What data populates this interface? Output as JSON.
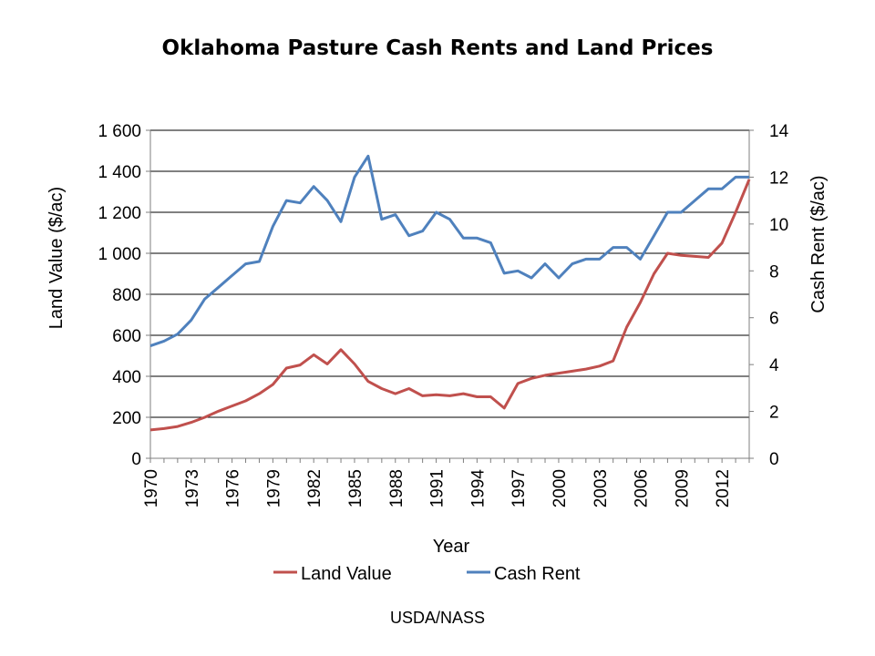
{
  "chart_data": {
    "type": "line",
    "title": "Oklahoma Pasture Cash Rents and Land Prices",
    "xlabel": "Year",
    "ylabel_left": "Land Value ($/ac)",
    "ylabel_right": "Cash Rent ($/ac)",
    "x": [
      1970,
      1971,
      1972,
      1973,
      1974,
      1975,
      1976,
      1977,
      1978,
      1979,
      1980,
      1981,
      1982,
      1983,
      1984,
      1985,
      1986,
      1987,
      1988,
      1989,
      1990,
      1991,
      1992,
      1993,
      1994,
      1995,
      1996,
      1997,
      1998,
      1999,
      2000,
      2001,
      2002,
      2003,
      2004,
      2005,
      2006,
      2007,
      2008,
      2009,
      2010,
      2011,
      2012,
      2013,
      2014
    ],
    "x_tick_labels": [
      "1970",
      "1973",
      "1976",
      "1979",
      "1982",
      "1985",
      "1988",
      "1991",
      "1994",
      "1997",
      "2000",
      "2003",
      "2006",
      "2009",
      "2012"
    ],
    "ylim_left": [
      0,
      1600
    ],
    "yticks_left": [
      "0",
      "200",
      "400",
      "600",
      "800",
      "1 000",
      "1 200",
      "1 400",
      "1 600"
    ],
    "ylim_right": [
      0,
      14
    ],
    "yticks_right": [
      "0",
      "2",
      "4",
      "6",
      "8",
      "10",
      "12",
      "14"
    ],
    "grid": "horizontal",
    "legend_position": "bottom",
    "series": [
      {
        "name": "Land Value",
        "axis": "left",
        "color": "#c0504d",
        "values": [
          138,
          145,
          155,
          175,
          200,
          230,
          255,
          280,
          315,
          360,
          440,
          455,
          505,
          460,
          530,
          460,
          375,
          340,
          315,
          340,
          305,
          310,
          305,
          315,
          300,
          300,
          245,
          365,
          390,
          405,
          415,
          425,
          435,
          450,
          475,
          640,
          760,
          900,
          1000,
          990,
          985,
          980,
          1050,
          1200,
          1360
        ]
      },
      {
        "name": "Cash Rent",
        "axis": "right",
        "color": "#4f81bd",
        "values": [
          4.8,
          5.0,
          5.3,
          5.9,
          6.8,
          7.3,
          7.8,
          8.3,
          8.4,
          9.9,
          11.0,
          10.9,
          11.6,
          11.0,
          10.1,
          12.0,
          12.9,
          10.2,
          10.4,
          9.5,
          9.7,
          10.5,
          10.2,
          9.4,
          9.4,
          9.2,
          7.9,
          8.0,
          7.7,
          8.3,
          7.7,
          8.3,
          8.5,
          8.5,
          9.0,
          9.0,
          8.5,
          9.5,
          10.5,
          10.5,
          11.0,
          11.5,
          11.5,
          12.0,
          12.0
        ]
      }
    ]
  },
  "source_note": "USDA/NASS"
}
